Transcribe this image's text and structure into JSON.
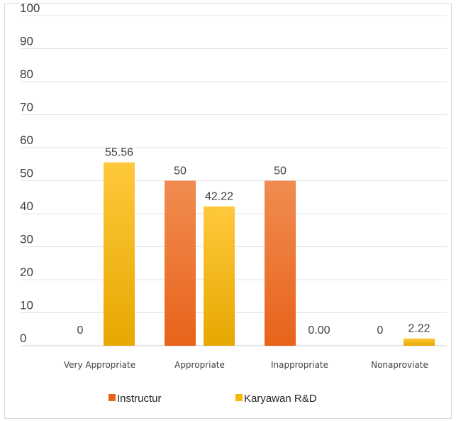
{
  "chart_data": {
    "type": "bar",
    "title": "",
    "xlabel": "",
    "ylabel": "",
    "ylim": [
      0,
      100
    ],
    "yticks": [
      "0",
      "10",
      "20",
      "30",
      "40",
      "50",
      "60",
      "70",
      "80",
      "90",
      "100"
    ],
    "grid": true,
    "legend_position": "bottom",
    "categories": [
      "Very Appropriate",
      "Appropriate",
      "Inappropriate",
      "Nonaproviate"
    ],
    "series": [
      {
        "name": "Instructur",
        "values": [
          0,
          50,
          50,
          0
        ],
        "labels": [
          "0",
          "50",
          "50",
          "0"
        ],
        "color_top": "#f08c50",
        "color_bottom": "#e8631a"
      },
      {
        "name": "Karyawan  R&D",
        "values": [
          55.56,
          42.22,
          0,
          2.22
        ],
        "labels": [
          "55.56",
          "42.22",
          "0.00",
          "2.22"
        ],
        "color_top": "#ffc83c",
        "color_bottom": "#e6a800"
      }
    ]
  }
}
